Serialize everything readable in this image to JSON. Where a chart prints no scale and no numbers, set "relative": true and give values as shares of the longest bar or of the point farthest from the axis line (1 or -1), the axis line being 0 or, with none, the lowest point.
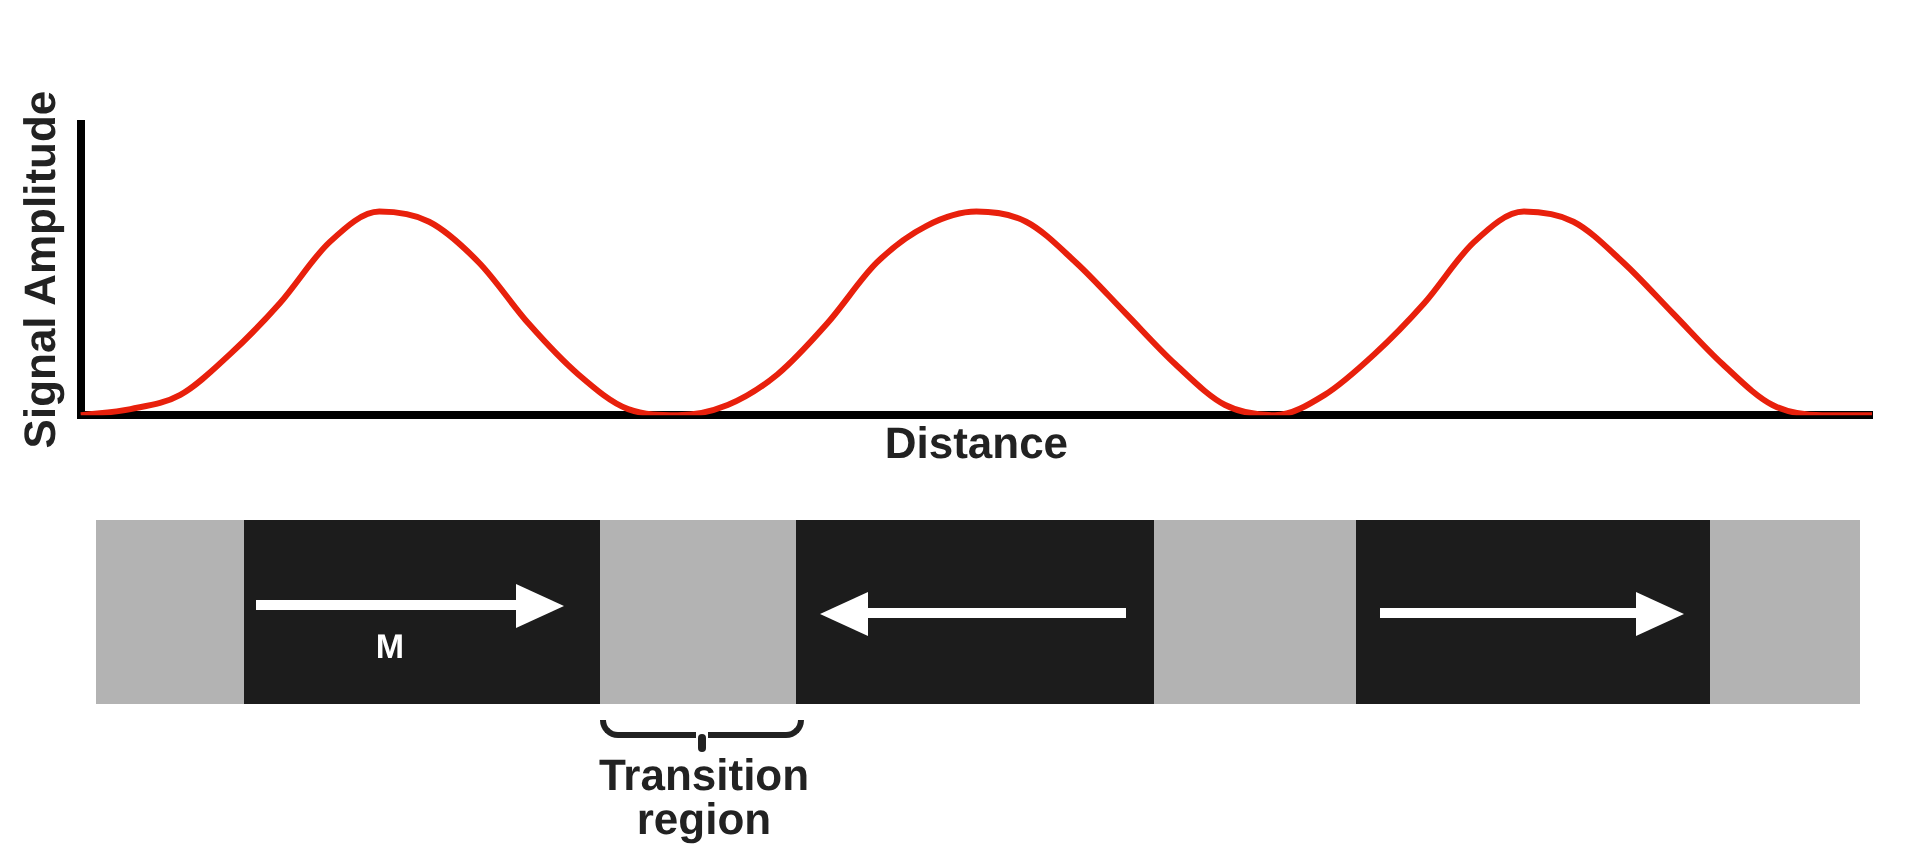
{
  "chart_data": {
    "type": "line",
    "relative": true,
    "xlabel": "Distance",
    "ylabel": "Signal Amplitude",
    "grid": false,
    "legend": false,
    "marker": "none",
    "line_style": "solid",
    "categories": [
      null,
      null,
      null,
      null,
      null,
      null,
      null,
      null,
      null,
      null,
      null,
      null,
      null,
      null,
      null,
      null,
      null,
      null,
      null,
      null,
      null,
      null,
      null,
      null,
      null,
      null,
      null,
      null,
      null,
      null,
      null,
      null,
      null,
      null,
      null,
      null,
      null
    ],
    "series": [
      {
        "color": "#e8200c",
        "values": [
          0,
          0.03,
          0.1,
          0.3,
          0.55,
          0.85,
          1,
          0.95,
          0.75,
          0.45,
          0.2,
          0.03,
          0,
          0.05,
          0.2,
          0.45,
          0.75,
          0.93,
          1,
          0.95,
          0.75,
          0.5,
          0.25,
          0.05,
          0,
          0.1,
          0.3,
          0.55,
          0.85,
          1,
          0.95,
          0.75,
          0.5,
          0.25,
          0.05,
          0,
          0
        ]
      }
    ],
    "annotations": [
      "M",
      "Transition region"
    ]
  }
}
